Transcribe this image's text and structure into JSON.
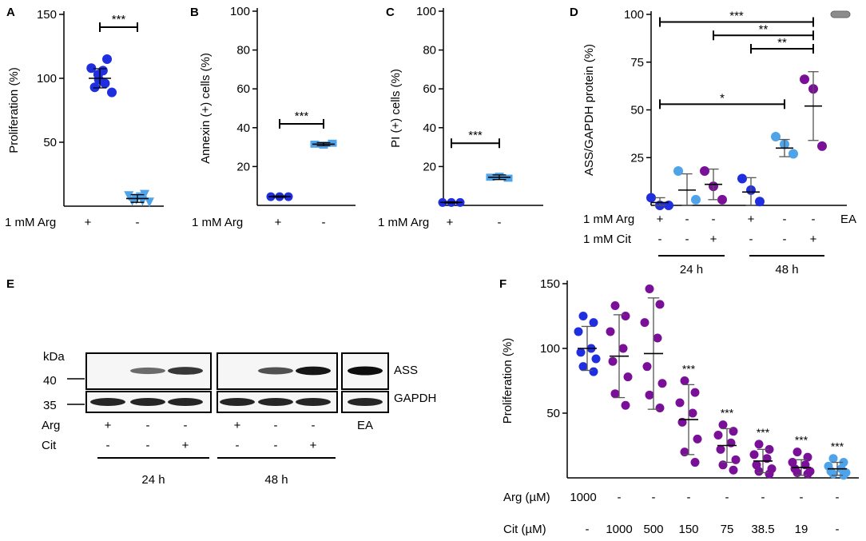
{
  "panels": {
    "A": {
      "label": "A"
    },
    "B": {
      "label": "B"
    },
    "C": {
      "label": "C"
    },
    "D": {
      "label": "D"
    },
    "E": {
      "label": "E"
    },
    "F": {
      "label": "F"
    }
  },
  "colors": {
    "dark_blue": "#1f2fe0",
    "light_blue": "#4fa3e8",
    "purple": "#7a0f98",
    "gray": "#8c8c8c",
    "err": "#555555"
  },
  "chart_data": [
    {
      "panel": "A",
      "type": "scatter",
      "ylabel": "Proliferation (%)",
      "ylim": [
        0,
        150
      ],
      "yticks": [
        50,
        100,
        150
      ],
      "row_label": "1 mM Arg",
      "groups": [
        "+",
        "-"
      ],
      "series": [
        {
          "group": "+",
          "marker": "circle",
          "color": "dark_blue",
          "values": [
            115,
            108,
            106,
            103,
            99,
            96,
            93,
            89
          ],
          "mean": 100,
          "sd": 7.5
        },
        {
          "group": "-",
          "marker": "triangle",
          "color": "light_blue",
          "values": [
            9,
            8,
            7,
            6,
            5,
            4,
            4,
            3
          ],
          "mean": 6,
          "sd": 3
        }
      ],
      "significance": [
        {
          "from": 0,
          "to": 1,
          "y": 140,
          "label": "***"
        }
      ]
    },
    {
      "panel": "B",
      "type": "scatter",
      "ylabel": "Annexin (+) cells (%)",
      "ylim": [
        0,
        100
      ],
      "yticks": [
        20,
        40,
        60,
        80,
        100
      ],
      "row_label": "1 mM Arg",
      "groups": [
        "+",
        "-"
      ],
      "series": [
        {
          "group": "+",
          "marker": "circle",
          "color": "dark_blue",
          "values": [
            4.5,
            4.5,
            4.5
          ],
          "mean": 4.5,
          "sd": 0.3
        },
        {
          "group": "-",
          "marker": "square",
          "color": "light_blue",
          "values": [
            31.5,
            31,
            32
          ],
          "mean": 31.5,
          "sd": 0.8
        }
      ],
      "significance": [
        {
          "from": 0,
          "to": 1,
          "y": 42,
          "label": "***"
        }
      ]
    },
    {
      "panel": "C",
      "type": "scatter",
      "ylabel": "PI (+) cells (%)",
      "ylim": [
        0,
        100
      ],
      "yticks": [
        20,
        40,
        60,
        80,
        100
      ],
      "row_label": "1 mM Arg",
      "groups": [
        "+",
        "-"
      ],
      "series": [
        {
          "group": "+",
          "marker": "circle",
          "color": "dark_blue",
          "values": [
            1.5,
            1.5,
            1.5
          ],
          "mean": 1.5,
          "sd": 0.3
        },
        {
          "group": "-",
          "marker": "square",
          "color": "light_blue",
          "values": [
            14.5,
            15,
            14
          ],
          "mean": 14.5,
          "sd": 1.2
        }
      ],
      "significance": [
        {
          "from": 0,
          "to": 1,
          "y": 32,
          "label": "***"
        }
      ]
    },
    {
      "panel": "D",
      "type": "scatter",
      "ylabel": "ASS/GAPDH protein (%)",
      "ylim": [
        0,
        100
      ],
      "yticks": [
        25,
        50,
        75,
        100
      ],
      "rows": [
        {
          "label": "1 mM Arg",
          "values": [
            "+",
            "-",
            "-",
            "+",
            "-",
            "-",
            "EA"
          ]
        },
        {
          "label": "1 mM Cit",
          "values": [
            "-",
            "-",
            "+",
            "-",
            "-",
            "+",
            ""
          ]
        }
      ],
      "timepoints": [
        {
          "label": "24 h",
          "from": 0,
          "to": 2
        },
        {
          "label": "48 h",
          "from": 3,
          "to": 5
        }
      ],
      "series": [
        {
          "group": 0,
          "points": [
            {
              "v": 4,
              "c": "dark_blue"
            },
            {
              "v": 0,
              "c": "dark_blue"
            },
            {
              "v": 0,
              "c": "dark_blue"
            }
          ],
          "mean": 1.5,
          "sd": 2.5
        },
        {
          "group": 1,
          "points": [
            {
              "v": 18,
              "c": "light_blue"
            },
            {
              "v": 3,
              "c": "light_blue"
            }
          ],
          "mean": 8,
          "sd": 8.5
        },
        {
          "group": 2,
          "points": [
            {
              "v": 18,
              "c": "purple"
            },
            {
              "v": 10,
              "c": "purple"
            },
            {
              "v": 3,
              "c": "purple"
            }
          ],
          "mean": 11,
          "sd": 8
        },
        {
          "group": 3,
          "points": [
            {
              "v": 14,
              "c": "dark_blue"
            },
            {
              "v": 8,
              "c": "dark_blue"
            },
            {
              "v": 2,
              "c": "dark_blue"
            }
          ],
          "mean": 7,
          "sd": 7.5
        },
        {
          "group": 4,
          "points": [
            {
              "v": 36,
              "c": "light_blue"
            },
            {
              "v": 32,
              "c": "light_blue"
            },
            {
              "v": 27,
              "c": "light_blue"
            }
          ],
          "mean": 30,
          "sd": 4.5
        },
        {
          "group": 5,
          "points": [
            {
              "v": 66,
              "c": "purple"
            },
            {
              "v": 61,
              "c": "purple"
            },
            {
              "v": 31,
              "c": "purple"
            }
          ],
          "mean": 52,
          "sd": 18
        },
        {
          "group": 6,
          "marker": "pill",
          "points": [
            {
              "v": 100,
              "c": "gray"
            }
          ],
          "mean": 100,
          "sd": 0
        }
      ],
      "significance": [
        {
          "from": 0,
          "to": 5,
          "y": 96,
          "label": "***"
        },
        {
          "from": 2,
          "to": 5,
          "y": 89,
          "label": "**"
        },
        {
          "from": 3,
          "to": 5,
          "y": 82,
          "label": "**"
        },
        {
          "from": 0,
          "to": 4,
          "y": 53,
          "label": "*"
        }
      ]
    },
    {
      "panel": "F",
      "type": "scatter",
      "ylabel": "Proliferation (%)",
      "ylim": [
        0,
        150
      ],
      "yticks": [
        50,
        100,
        150
      ],
      "rows": [
        {
          "label": "Arg (µM)",
          "values": [
            "1000",
            "-",
            "-",
            "-",
            "-",
            "-",
            "-",
            "-"
          ]
        },
        {
          "label": "Cit (µM)",
          "values": [
            "-",
            "1000",
            "500",
            "150",
            "75",
            "38.5",
            "19",
            "-"
          ]
        }
      ],
      "series": [
        {
          "group": 0,
          "color": "dark_blue",
          "values": [
            125,
            120,
            113,
            100,
            97,
            92,
            86,
            82
          ],
          "mean": 100,
          "sd": 17
        },
        {
          "group": 1,
          "color": "purple",
          "values": [
            133,
            125,
            113,
            100,
            90,
            78,
            65,
            56
          ],
          "mean": 94,
          "sd": 32
        },
        {
          "group": 2,
          "color": "purple",
          "values": [
            146,
            134,
            120,
            108,
            86,
            73,
            64,
            54
          ],
          "mean": 96,
          "sd": 43,
          "note": ""
        },
        {
          "group": 3,
          "color": "purple",
          "values": [
            75,
            66,
            58,
            50,
            43,
            30,
            20,
            12
          ],
          "mean": 45,
          "sd": 27,
          "sig": "***"
        },
        {
          "group": 4,
          "color": "purple",
          "values": [
            41,
            36,
            33,
            27,
            22,
            14,
            10,
            6
          ],
          "mean": 25,
          "sd": 13,
          "sig": "***"
        },
        {
          "group": 5,
          "color": "purple",
          "values": [
            26,
            22,
            18,
            15,
            10,
            7,
            5,
            3
          ],
          "mean": 13,
          "sd": 9,
          "sig": "***"
        },
        {
          "group": 6,
          "color": "purple",
          "values": [
            20,
            16,
            12,
            10,
            7,
            5,
            4,
            3
          ],
          "mean": 8,
          "sd": 6,
          "sig": "***"
        },
        {
          "group": 7,
          "color": "light_blue",
          "values": [
            15,
            12,
            9,
            7,
            5,
            4,
            3,
            2
          ],
          "mean": 7,
          "sd": 5,
          "sig": "***"
        }
      ]
    }
  ],
  "blot": {
    "kda_label": "kDa",
    "markers": [
      "40",
      "35"
    ],
    "bands": [
      "ASS",
      "GAPDH"
    ],
    "rows": [
      {
        "label": "Arg",
        "values": [
          "+",
          "-",
          "-",
          "+",
          "-",
          "-",
          "EA"
        ]
      },
      {
        "label": "Cit",
        "values": [
          "-",
          "-",
          "+",
          "-",
          "-",
          "+",
          ""
        ]
      }
    ],
    "timepoints": [
      "24 h",
      "48 h"
    ],
    "ass_intensity": [
      0.0,
      0.45,
      0.75,
      0.0,
      0.6,
      0.95,
      1.0
    ],
    "gapdh_intensity": [
      1,
      1,
      1,
      1,
      1,
      1,
      1
    ]
  }
}
